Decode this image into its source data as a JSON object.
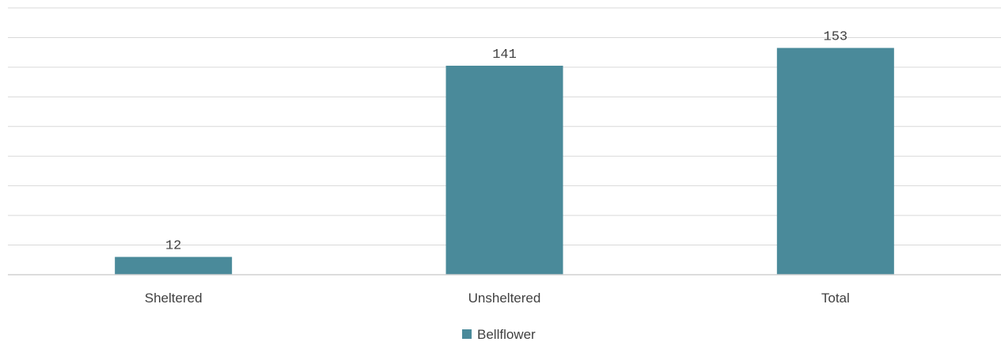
{
  "chart_data": {
    "type": "bar",
    "categories": [
      "Sheltered",
      "Unsheltered",
      "Total"
    ],
    "series": [
      {
        "name": "Bellflower",
        "values": [
          12,
          141,
          153
        ],
        "color": "#4a8a9a"
      }
    ],
    "data_labels": [
      "12",
      "141",
      "153"
    ],
    "ylim": [
      0,
      180
    ],
    "grid": true,
    "legend_position": "bottom"
  }
}
